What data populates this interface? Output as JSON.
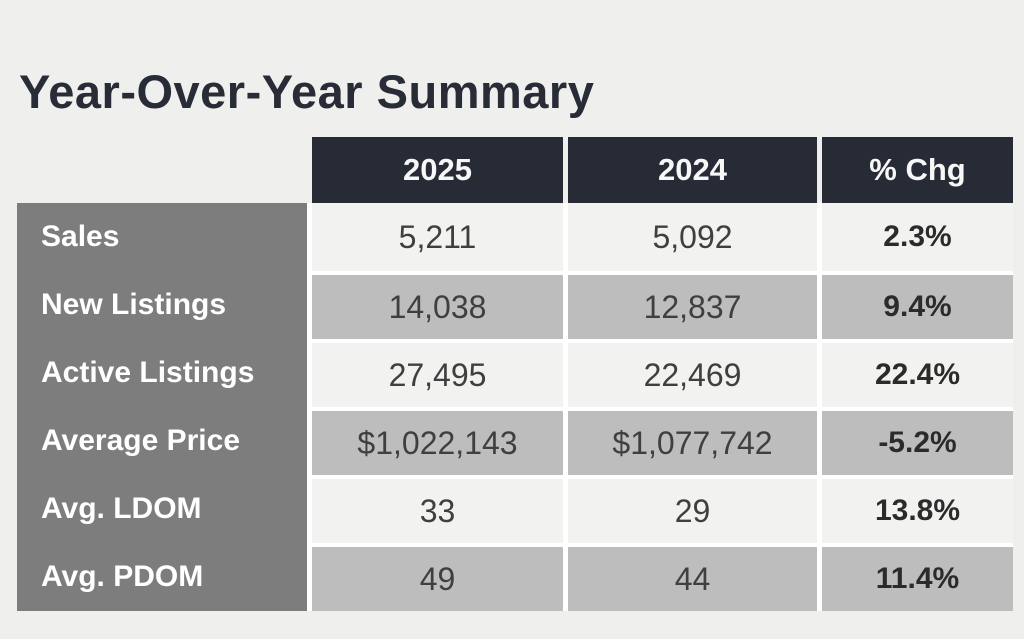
{
  "page": {
    "title": "Year-Over-Year Summary"
  },
  "table": {
    "header": {
      "year_current": "2025",
      "year_prior": "2024",
      "pct_chg": "% Chg"
    },
    "rows": [
      {
        "label": "Sales",
        "current": "5,211",
        "prior": "5,092",
        "chg": "2.3%"
      },
      {
        "label": "New Listings",
        "current": "14,038",
        "prior": "12,837",
        "chg": "9.4%"
      },
      {
        "label": "Active Listings",
        "current": "27,495",
        "prior": "22,469",
        "chg": "22.4%"
      },
      {
        "label": "Average Price",
        "current": "$1,022,143",
        "prior": "$1,077,742",
        "chg": "-5.2%"
      },
      {
        "label": "Avg. LDOM",
        "current": "33",
        "prior": "29",
        "chg": "13.8%"
      },
      {
        "label": "Avg. PDOM",
        "current": "49",
        "prior": "44",
        "chg": "11.4%"
      }
    ]
  },
  "colors": {
    "page_bg": "#efefee",
    "title_text": "#282c37",
    "header_bg": "#262b36",
    "header_text": "#f7f7f7",
    "label_bg": "#7d7d7d",
    "label_text": "#ffffff",
    "row_light": "#f2f2f0",
    "row_gray": "#bdbdbd",
    "data_text": "#3f3f3f",
    "pct_text": "#2b2b2b",
    "separator": "#ffffff"
  },
  "chart_data": {
    "type": "table",
    "title": "Year-Over-Year Summary",
    "columns": [
      "",
      "2025",
      "2024",
      "% Chg"
    ],
    "rows": [
      [
        "Sales",
        5211,
        5092,
        "2.3%"
      ],
      [
        "New Listings",
        14038,
        12837,
        "9.4%"
      ],
      [
        "Active Listings",
        27495,
        22469,
        "22.4%"
      ],
      [
        "Average Price",
        "$1,022,143",
        "$1,077,742",
        "-5.2%"
      ],
      [
        "Avg. LDOM",
        33,
        29,
        "13.8%"
      ],
      [
        "Avg. PDOM",
        49,
        44,
        "11.4%"
      ]
    ],
    "layout_hints": {
      "label_column_style": "solid gray block, white bold left-aligned text",
      "header_style": "dark charcoal cells over value columns only",
      "body_style": "rows alternate near-white and mid-gray, % Chg column bold"
    }
  }
}
